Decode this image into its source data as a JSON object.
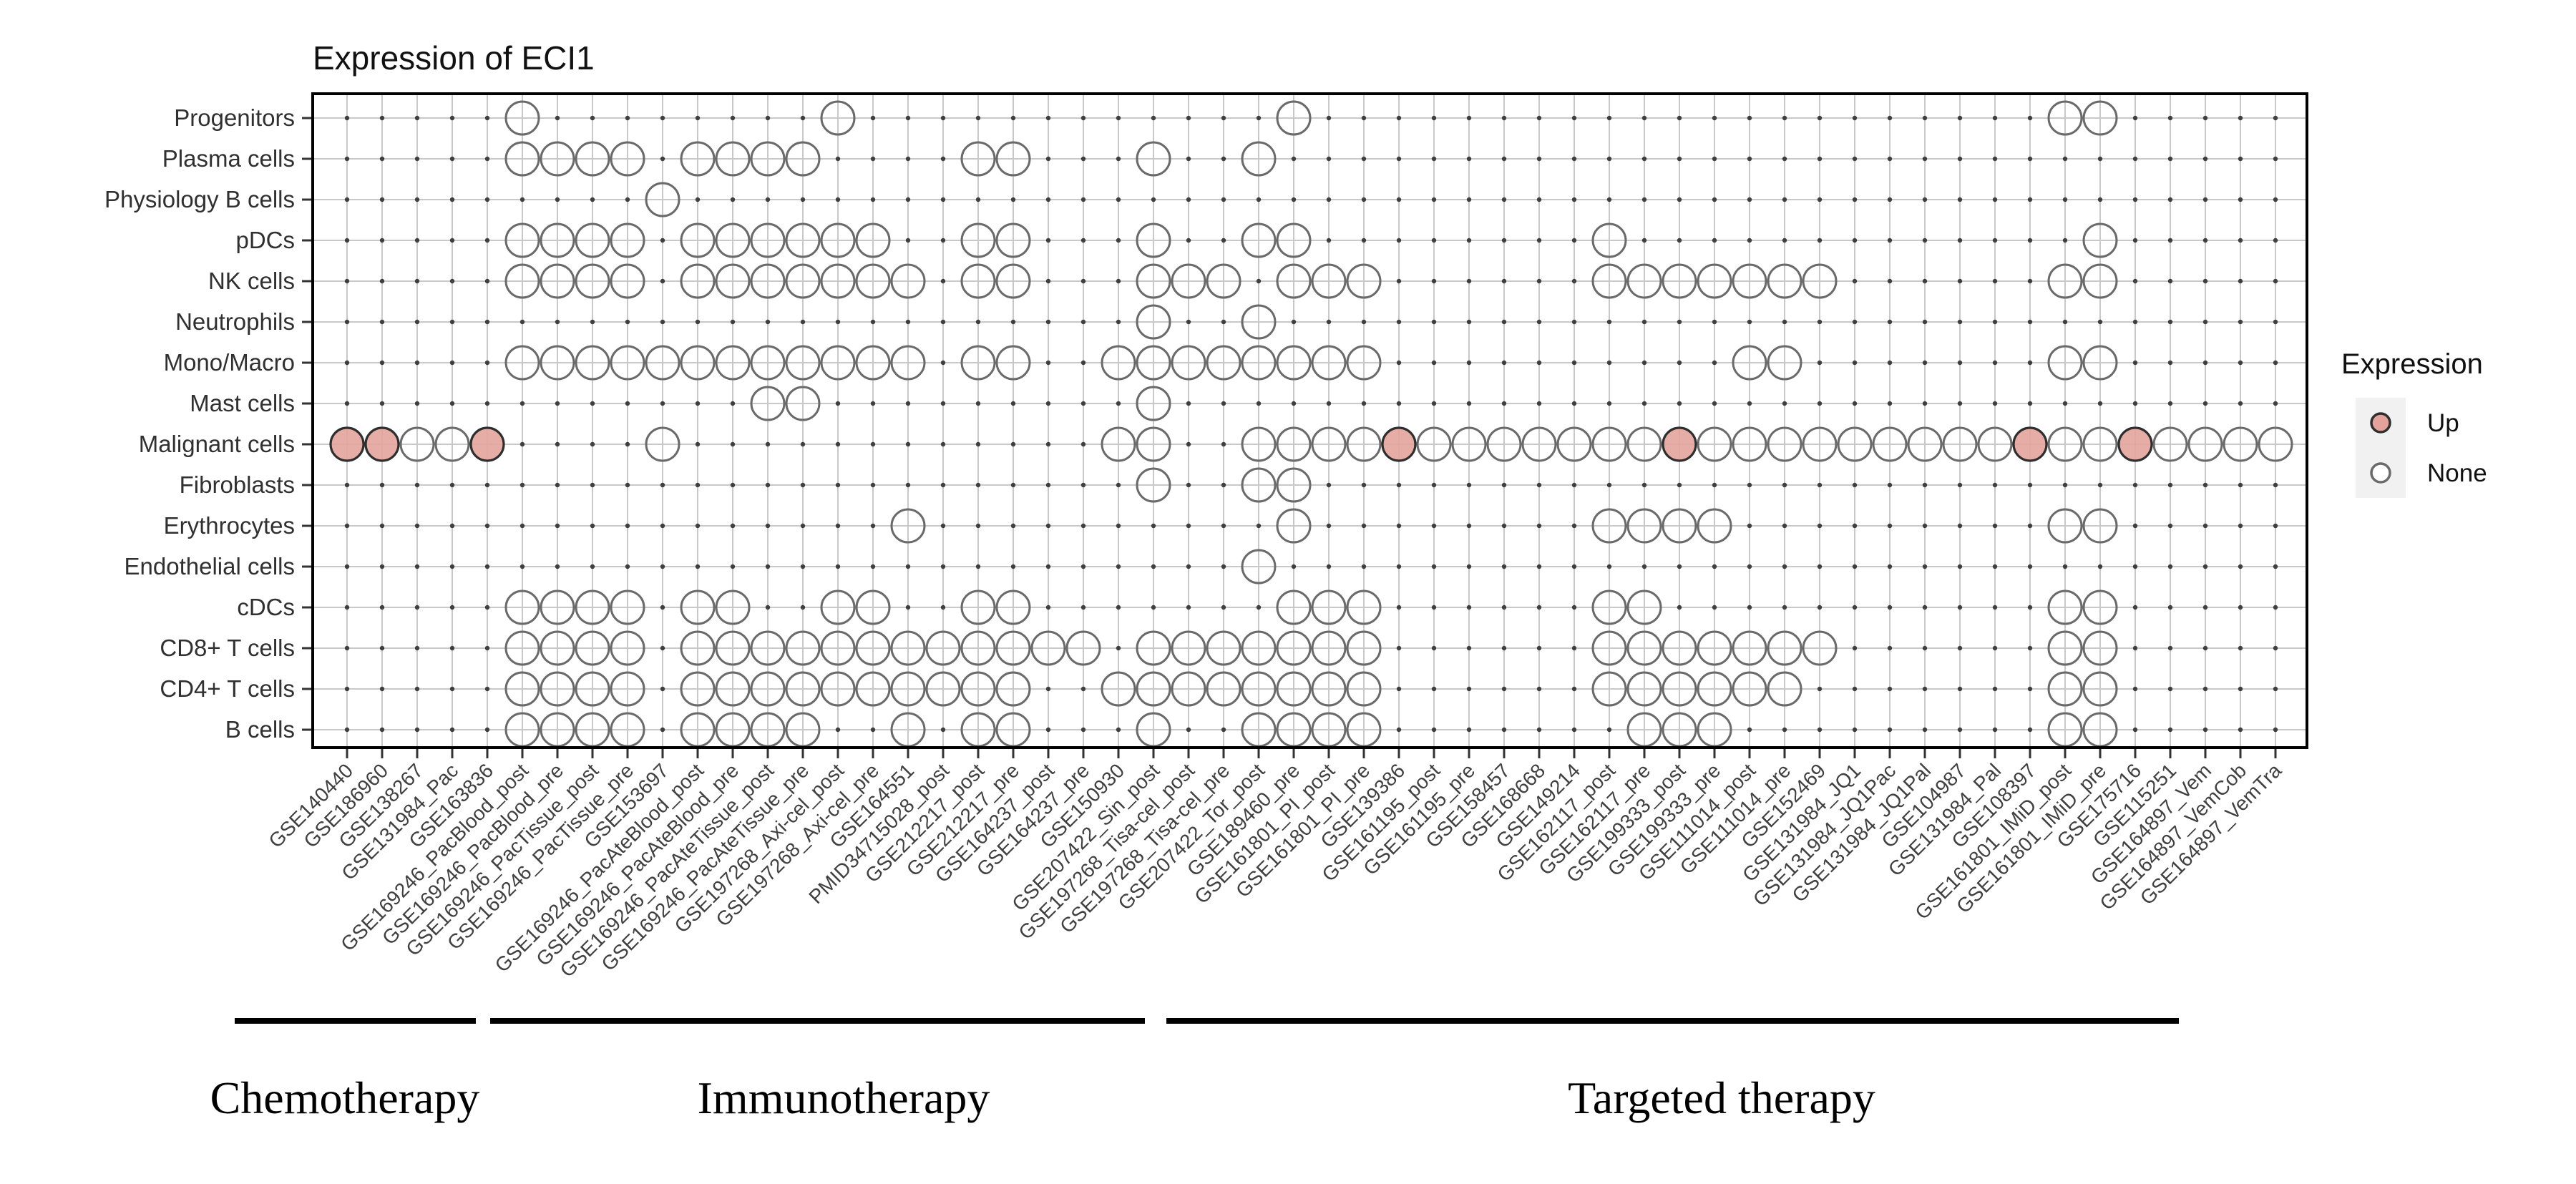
{
  "chart_data": {
    "type": "heatmap",
    "title": "Expression of ECI1",
    "legend": {
      "title": "Expression",
      "items": [
        {
          "label": "Up",
          "state": "up"
        },
        {
          "label": "None",
          "state": "none"
        }
      ]
    },
    "colors": {
      "up_fill": "#e3a39c",
      "up_stroke": "#2e2e2e",
      "none_stroke": "#6a6a6a",
      "grid_line": "#c9c9c9",
      "grid_dot": "#3f3f3f",
      "axis_text": "#303030",
      "legend_key_bg": "#f1f1f1",
      "border": "#000000"
    },
    "x_categories": [
      "GSE140440",
      "GSE186960",
      "GSE138267",
      "GSE131984_Pac",
      "GSE163836",
      "GSE169246_PacBlood_post",
      "GSE169246_PacBlood_pre",
      "GSE169246_PacTissue_post",
      "GSE169246_PacTissue_pre",
      "GSE153697",
      "GSE169246_PacAteBlood_post",
      "GSE169246_PacAteBlood_pre",
      "GSE169246_PacAteTissue_post",
      "GSE169246_PacAteTissue_pre",
      "GSE197268_Axi-cel_post",
      "GSE197268_Axi-cel_pre",
      "GSE164551",
      "PMID34715028_post",
      "GSE212217_post",
      "GSE212217_pre",
      "GSE164237_post",
      "GSE164237_pre",
      "GSE150930",
      "GSE207422_Sin_post",
      "GSE197268_Tisa-cel_post",
      "GSE197268_Tisa-cel_pre",
      "GSE207422_Tor_post",
      "GSE189460_pre",
      "GSE161801_PI_post",
      "GSE161801_PI_pre",
      "GSE139386",
      "GSE161195_post",
      "GSE161195_pre",
      "GSE158457",
      "GSE168668",
      "GSE149214",
      "GSE162117_post",
      "GSE162117_pre",
      "GSE199333_post",
      "GSE199333_pre",
      "GSE111014_post",
      "GSE111014_pre",
      "GSE152469",
      "GSE131984_JQ1",
      "GSE131984_JQ1Pac",
      "GSE131984_JQ1Pal",
      "GSE104987",
      "GSE131984_Pal",
      "GSE108397",
      "GSE161801_IMiD_post",
      "GSE161801_IMiD_pre",
      "GSE175716",
      "GSE115251",
      "GSE164897_Vem",
      "GSE164897_VemCob",
      "GSE164897_VemTra"
    ],
    "y_categories": [
      "Progenitors",
      "Plasma cells",
      "Physiology B cells",
      "pDCs",
      "NK cells",
      "Neutrophils",
      "Mono/Macro",
      "Mast cells",
      "Malignant cells",
      "Fibroblasts",
      "Erythrocytes",
      "Endothelial cells",
      "cDCs",
      "CD8+ T cells",
      "CD4+ T cells",
      "B cells"
    ],
    "cells": {
      "Progenitors": {
        "none": [
          6,
          15,
          28,
          50,
          51
        ],
        "up": []
      },
      "Plasma cells": {
        "none": [
          6,
          7,
          8,
          9,
          11,
          12,
          13,
          14,
          19,
          20,
          24,
          27
        ],
        "up": []
      },
      "Physiology B cells": {
        "none": [
          10
        ],
        "up": []
      },
      "pDCs": {
        "none": [
          6,
          7,
          8,
          9,
          11,
          12,
          13,
          14,
          15,
          16,
          19,
          20,
          24,
          27,
          28,
          37,
          51
        ],
        "up": []
      },
      "NK cells": {
        "none": [
          6,
          7,
          8,
          9,
          11,
          12,
          13,
          14,
          15,
          16,
          17,
          19,
          20,
          24,
          25,
          26,
          28,
          29,
          30,
          37,
          38,
          39,
          40,
          41,
          42,
          43,
          50,
          51
        ],
        "up": []
      },
      "Neutrophils": {
        "none": [
          24,
          27
        ],
        "up": []
      },
      "Mono/Macro": {
        "none": [
          6,
          7,
          8,
          9,
          10,
          11,
          12,
          13,
          14,
          15,
          16,
          17,
          19,
          20,
          23,
          24,
          25,
          26,
          27,
          28,
          29,
          30,
          41,
          42,
          50,
          51
        ],
        "up": []
      },
      "Mast cells": {
        "none": [
          13,
          14,
          24
        ],
        "up": []
      },
      "Malignant cells": {
        "none": [
          3,
          4,
          10,
          23,
          24,
          27,
          28,
          29,
          30,
          32,
          33,
          34,
          35,
          36,
          37,
          38,
          40,
          41,
          42,
          43,
          44,
          45,
          46,
          47,
          48,
          50,
          51,
          53,
          54,
          55,
          56
        ],
        "up": [
          1,
          2,
          5,
          31,
          39,
          49,
          52
        ]
      },
      "Fibroblasts": {
        "none": [
          24,
          27,
          28
        ],
        "up": []
      },
      "Erythrocytes": {
        "none": [
          17,
          28,
          37,
          38,
          39,
          40,
          50,
          51
        ],
        "up": []
      },
      "Endothelial cells": {
        "none": [
          27
        ],
        "up": []
      },
      "cDCs": {
        "none": [
          6,
          7,
          8,
          9,
          11,
          12,
          15,
          16,
          19,
          20,
          28,
          29,
          30,
          37,
          38,
          50,
          51
        ],
        "up": []
      },
      "CD8+ T cells": {
        "none": [
          6,
          7,
          8,
          9,
          11,
          12,
          13,
          14,
          15,
          16,
          17,
          18,
          19,
          20,
          21,
          22,
          24,
          25,
          26,
          27,
          28,
          29,
          30,
          37,
          38,
          39,
          40,
          41,
          42,
          43,
          50,
          51
        ],
        "up": []
      },
      "CD4+ T cells": {
        "none": [
          6,
          7,
          8,
          9,
          11,
          12,
          13,
          14,
          15,
          16,
          17,
          18,
          19,
          20,
          23,
          24,
          25,
          26,
          27,
          28,
          29,
          30,
          37,
          38,
          39,
          40,
          41,
          42,
          50,
          51
        ],
        "up": []
      },
      "B cells": {
        "none": [
          6,
          7,
          8,
          9,
          11,
          12,
          13,
          14,
          17,
          19,
          20,
          24,
          27,
          28,
          29,
          30,
          38,
          39,
          40,
          50,
          51
        ],
        "up": []
      }
    },
    "groups": [
      {
        "label": "Chemotherapy",
        "from_col": 1,
        "to_col": 5
      },
      {
        "label": "Immunotherapy",
        "from_col": 6,
        "to_col": 23
      },
      {
        "label": "Targeted therapy",
        "from_col": 24,
        "to_col": 56
      }
    ],
    "layout_hints": {
      "grid": true,
      "legend_position": "right",
      "x_label_rotation": -45
    }
  }
}
